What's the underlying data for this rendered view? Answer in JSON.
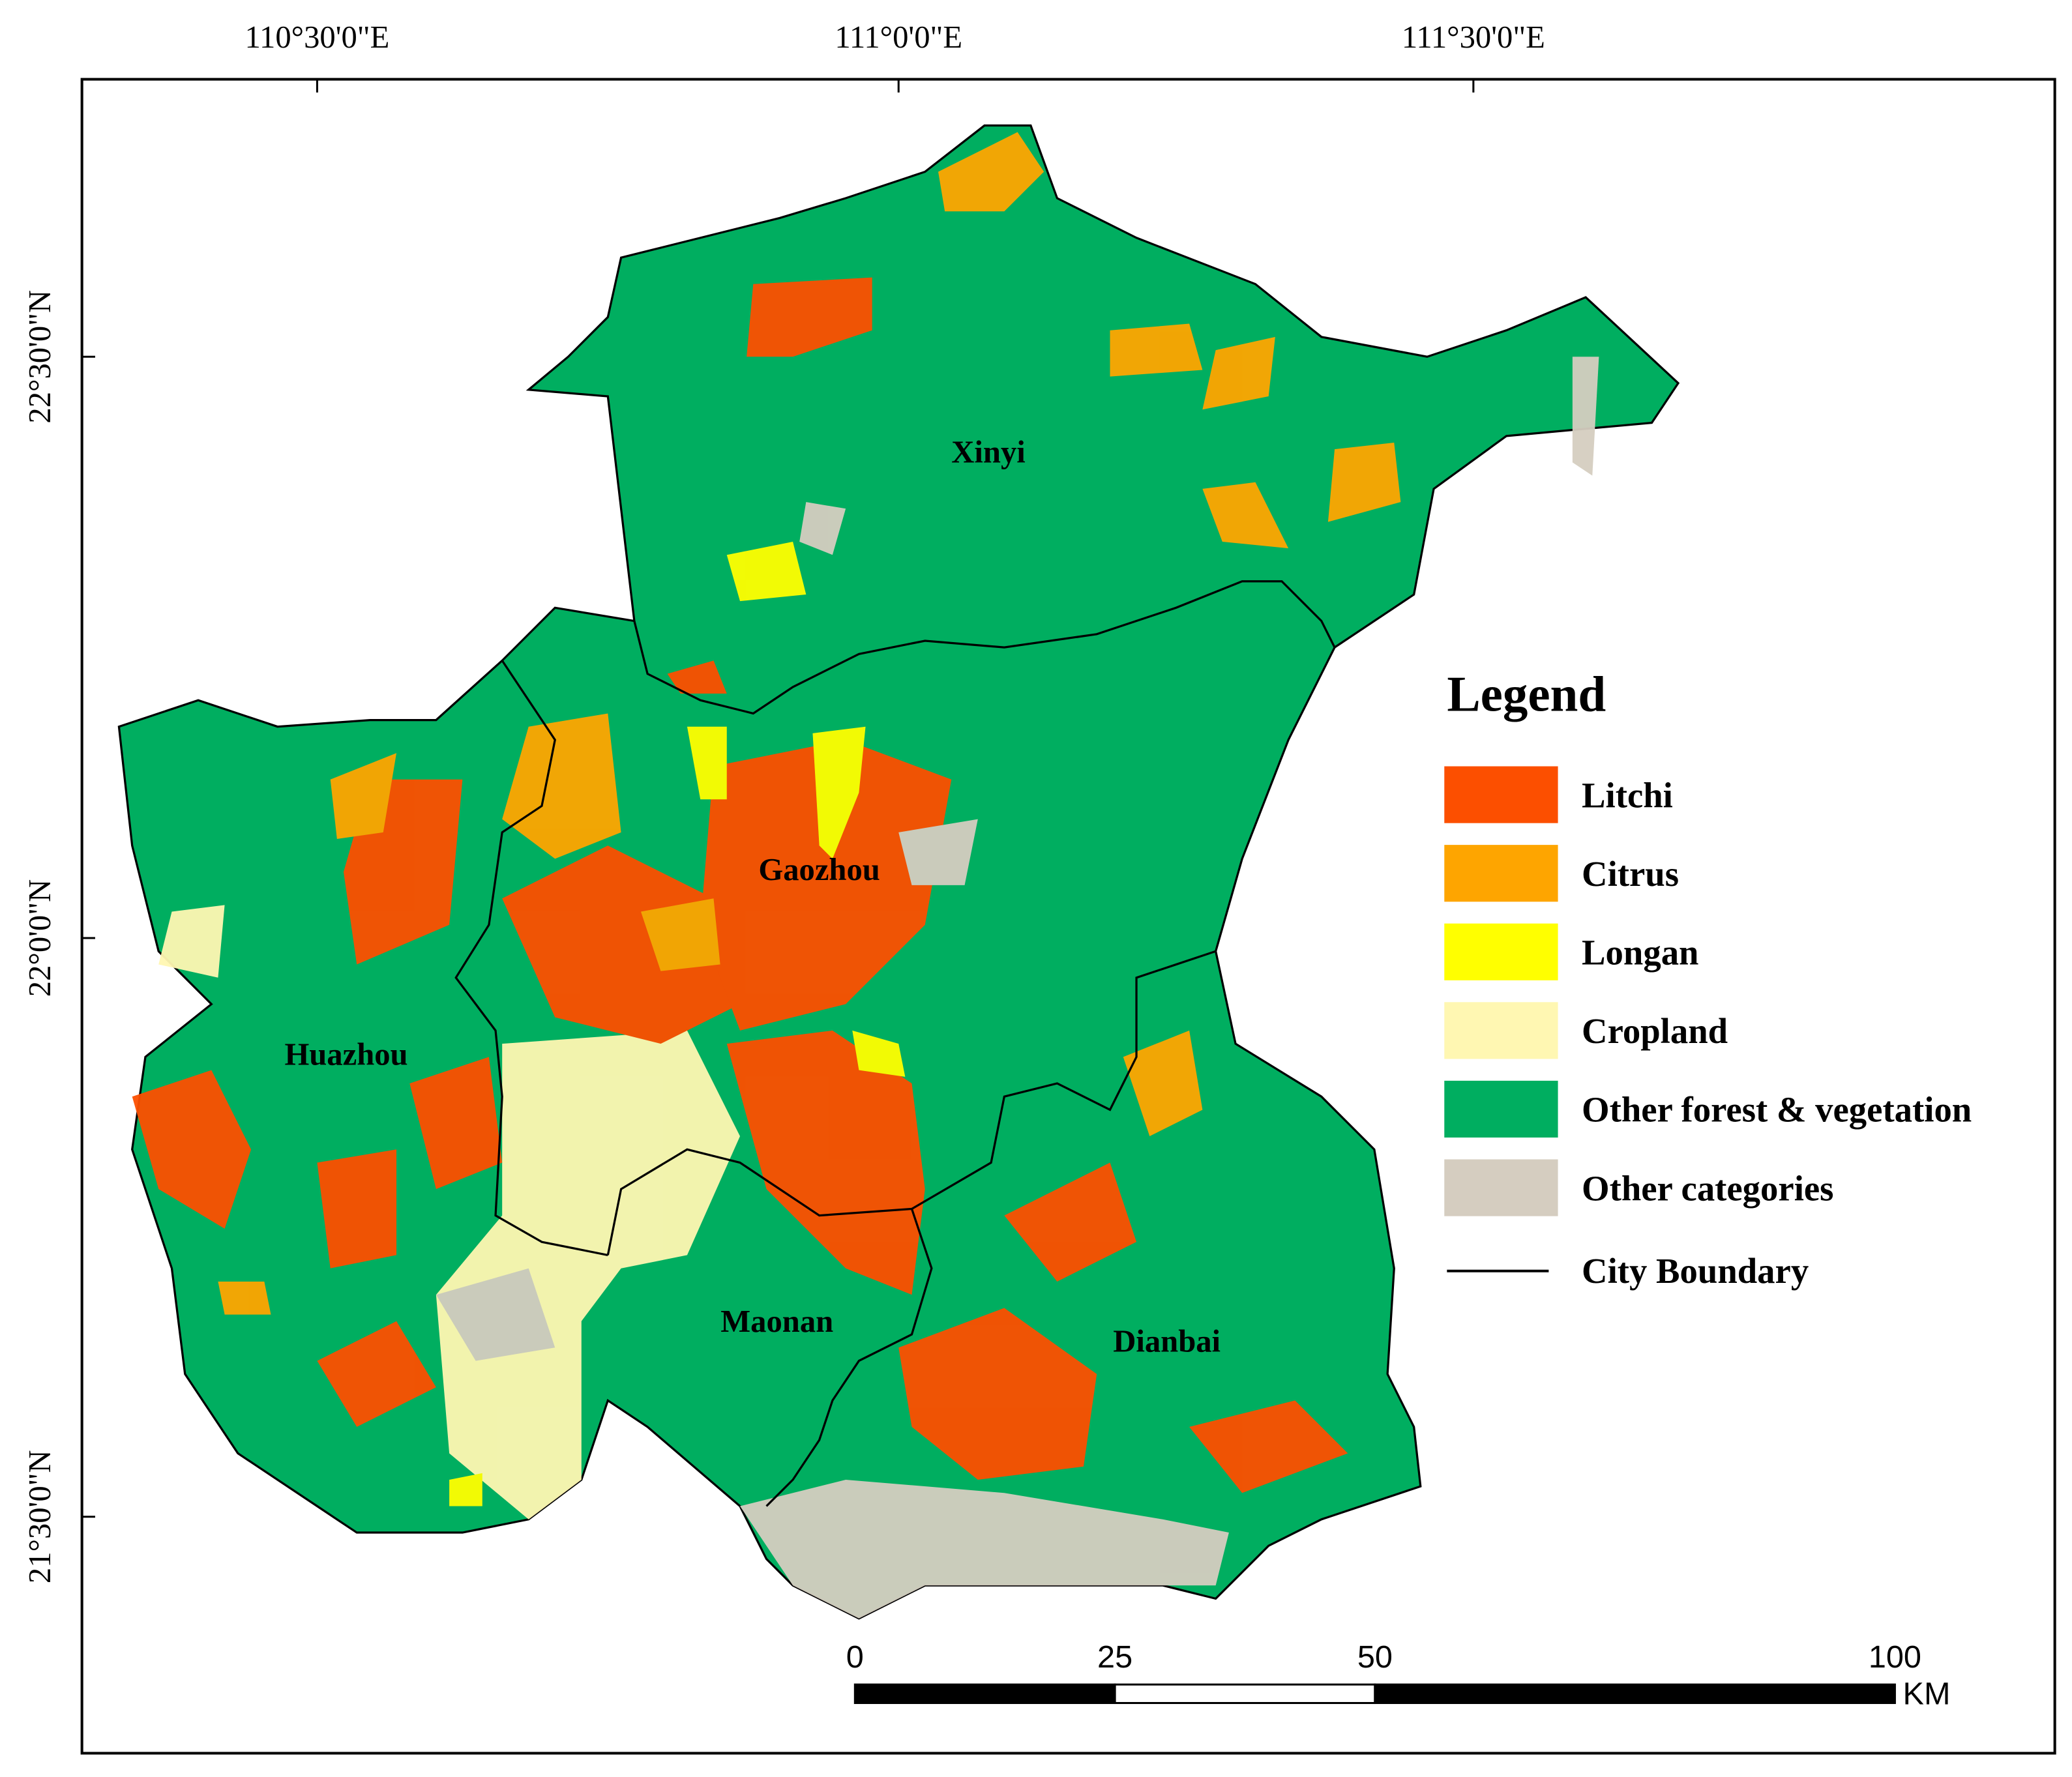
{
  "graticule": {
    "longitudes": [
      "110°30'0\"E",
      "111°0'0\"E",
      "111°30'0\"E"
    ],
    "latitudes": [
      "22°30'0\"N",
      "22°0'0\"N",
      "21°30'0\"N"
    ]
  },
  "cities": [
    "Xinyi",
    "Gaozhou",
    "Huazhou",
    "Maonan",
    "Dianbai"
  ],
  "legend": {
    "title": "Legend",
    "items": [
      {
        "label": "Litchi",
        "color": "#fc4f00"
      },
      {
        "label": "Citrus",
        "color": "#fea500"
      },
      {
        "label": "Longan",
        "color": "#ffff00"
      },
      {
        "label": "Cropland",
        "color": "#fff7b2"
      },
      {
        "label": "Other forest & vegetation",
        "color": "#00ae60"
      },
      {
        "label": "Other categories",
        "color": "#d5cdc0"
      }
    ],
    "boundary_label": "City Boundary"
  },
  "scale_bar": {
    "ticks": [
      0,
      25,
      50,
      100
    ],
    "unit": "KM"
  }
}
